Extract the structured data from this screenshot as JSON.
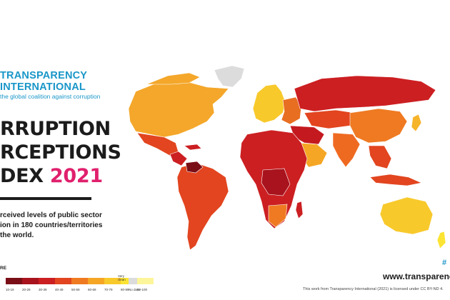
{
  "organization": {
    "name_line1": "TRANSPARENCY",
    "name_line2": "INTERNATIONAL",
    "tagline": "the global coalition against corruption"
  },
  "title": {
    "line1": "RRUPTION",
    "line2": "RCEPTIONS",
    "line3_prefix": "DEX ",
    "year": "2021"
  },
  "description": {
    "line1": "rceived levels of public sector",
    "line2": "ion in 180 countries/territories",
    "line3": "the world."
  },
  "legend": {
    "label": "RE",
    "scale_ticks": [
      "10-19",
      "20-29",
      "30-39",
      "40-49",
      "50-59",
      "60-69",
      "70-79",
      "80-89",
      "90-100"
    ],
    "scale_colors": [
      "#7a0e17",
      "#a8131d",
      "#cc1f22",
      "#e2451f",
      "#ef7a22",
      "#f5a624",
      "#f8c92b",
      "#fbe433",
      "#fdf59a"
    ],
    "very_clean_label_1": "Very",
    "very_clean_label_2": "clean",
    "no_data_label": "No data",
    "no_data_color": "#dcdcdc"
  },
  "footer": {
    "website": "www.transparency.",
    "license": "This work from Transparency International (2021) is licensed under CC BY-ND 4.",
    "hashtag": "#"
  },
  "map": {
    "colors": {
      "north_america": "#f4a72a",
      "greenland": "#dcdcdc",
      "mexico": "#e2451f",
      "central_america": "#cc1f22",
      "south_america": "#e2451f",
      "venezuela": "#7a0e17",
      "western_europe": "#f8c92b",
      "eastern_europe": "#e86e22",
      "russia": "#cc1f22",
      "central_asia": "#e2451f",
      "middle_east": "#c41a1f",
      "arabian_peninsula": "#f5a624",
      "china": "#ef7a22",
      "india": "#ef6a21",
      "africa": "#cc1f22",
      "central_africa": "#a8131d",
      "southern_africa": "#ef7a22",
      "southeast_asia": "#e2451f",
      "japan": "#f5b42a",
      "australia": "#f8c92b",
      "new_zealand": "#fbe433",
      "madagascar": "#cc1f22"
    }
  }
}
